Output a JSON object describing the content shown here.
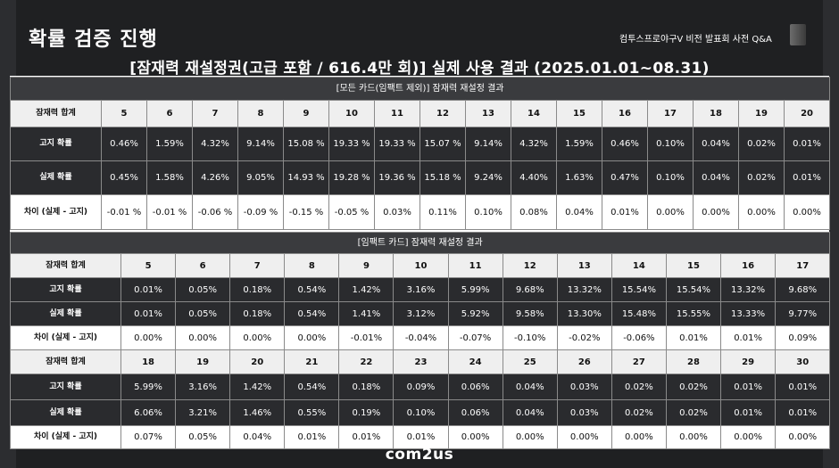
{
  "header": {
    "title": "확률 검증 진행",
    "right_caption": "컴투스프로야구V 비전 발표회 사전 Q&A",
    "main_title": "[잠재력 재설정권(고급 포함 / 616.4만 회)] 실제 사용 결과 (2025.01.01~08.31)"
  },
  "section1": {
    "title": "[모든 카드(임팩트 제외)] 잠재력 재설정 결과",
    "row_labels": [
      "잠재력 합계",
      "고지 확률",
      "실제 확률",
      "차이 (실제 - 고지)"
    ],
    "sums": [
      "5",
      "6",
      "7",
      "8",
      "9",
      "10",
      "11",
      "12",
      "13",
      "14",
      "15",
      "16",
      "17",
      "18",
      "19",
      "20"
    ],
    "notified": [
      "0.46%",
      "1.59%",
      "4.32%",
      "9.14%",
      "15.08 %",
      "19.33 %",
      "19.33 %",
      "15.07 %",
      "9.14%",
      "4.32%",
      "1.59%",
      "0.46%",
      "0.10%",
      "0.04%",
      "0.02%",
      "0.01%"
    ],
    "actual": [
      "0.45%",
      "1.58%",
      "4.26%",
      "9.05%",
      "14.93 %",
      "19.28 %",
      "19.36 %",
      "15.18 %",
      "9.24%",
      "4.40%",
      "1.63%",
      "0.47%",
      "0.10%",
      "0.04%",
      "0.02%",
      "0.01%"
    ],
    "diff": [
      "-0.01 %",
      "-0.01 %",
      "-0.06 %",
      "-0.09 %",
      "-0.15 %",
      "-0.05 %",
      "0.03%",
      "0.11%",
      "0.10%",
      "0.08%",
      "0.04%",
      "0.01%",
      "0.00%",
      "0.00%",
      "0.00%",
      "0.00%"
    ]
  },
  "section2": {
    "title": "[임팩트 카드] 잠재력 재설정 결과",
    "row_labels": [
      "잠재력 합계",
      "고지 확률",
      "실제 확률",
      "차이 (실제 - 고지)"
    ],
    "part1": {
      "sums": [
        "5",
        "6",
        "7",
        "8",
        "9",
        "10",
        "11",
        "12",
        "13",
        "14",
        "15",
        "16",
        "17"
      ],
      "notified": [
        "0.01%",
        "0.05%",
        "0.18%",
        "0.54%",
        "1.42%",
        "3.16%",
        "5.99%",
        "9.68%",
        "13.32%",
        "15.54%",
        "15.54%",
        "13.32%",
        "9.68%"
      ],
      "actual": [
        "0.01%",
        "0.05%",
        "0.18%",
        "0.54%",
        "1.41%",
        "3.12%",
        "5.92%",
        "9.58%",
        "13.30%",
        "15.48%",
        "15.55%",
        "13.33%",
        "9.77%"
      ],
      "diff": [
        "0.00%",
        "0.00%",
        "0.00%",
        "0.00%",
        "-0.01%",
        "-0.04%",
        "-0.07%",
        "-0.10%",
        "-0.02%",
        "-0.06%",
        "0.01%",
        "0.01%",
        "0.09%"
      ]
    },
    "part2": {
      "sums": [
        "18",
        "19",
        "20",
        "21",
        "22",
        "23",
        "24",
        "25",
        "26",
        "27",
        "28",
        "29",
        "30"
      ],
      "notified": [
        "5.99%",
        "3.16%",
        "1.42%",
        "0.54%",
        "0.18%",
        "0.09%",
        "0.06%",
        "0.04%",
        "0.03%",
        "0.02%",
        "0.02%",
        "0.01%",
        "0.01%"
      ],
      "actual": [
        "6.06%",
        "3.21%",
        "1.46%",
        "0.55%",
        "0.19%",
        "0.10%",
        "0.06%",
        "0.04%",
        "0.03%",
        "0.02%",
        "0.02%",
        "0.01%",
        "0.01%"
      ],
      "diff": [
        "0.07%",
        "0.05%",
        "0.04%",
        "0.01%",
        "0.01%",
        "0.01%",
        "0.00%",
        "0.00%",
        "0.00%",
        "0.00%",
        "0.00%",
        "0.00%",
        "0.00%"
      ]
    }
  },
  "footer": {
    "logo": "com2us"
  }
}
